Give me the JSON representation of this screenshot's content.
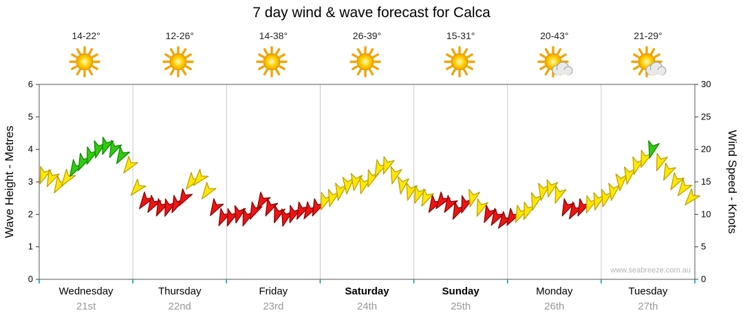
{
  "title": "7 day wind & wave forecast for Calca",
  "watermark": "www.seabreeze.com.au",
  "axes": {
    "left_label": "Wave Height - Metres",
    "right_label": "Wind Speed - Knots"
  },
  "days": [
    {
      "name": "Wednesday",
      "date": "21st",
      "temp": "14-22°",
      "icon": "sunny",
      "bold": false
    },
    {
      "name": "Thursday",
      "date": "22nd",
      "temp": "12-26°",
      "icon": "sunny",
      "bold": false
    },
    {
      "name": "Friday",
      "date": "23rd",
      "temp": "14-38°",
      "icon": "sunny",
      "bold": false
    },
    {
      "name": "Saturday",
      "date": "24th",
      "temp": "26-39°",
      "icon": "sunny",
      "bold": true
    },
    {
      "name": "Sunday",
      "date": "25th",
      "temp": "15-31°",
      "icon": "sunny",
      "bold": true
    },
    {
      "name": "Monday",
      "date": "26th",
      "temp": "20-43°",
      "icon": "partly-cloudy",
      "bold": false
    },
    {
      "name": "Tuesday",
      "date": "27th",
      "temp": "21-29°",
      "icon": "partly-cloudy",
      "bold": false
    }
  ],
  "chart_data": {
    "type": "scatter",
    "subtype": "wind-arrows",
    "title": "7 day wind & wave forecast for Calca",
    "x_axis": {
      "categories": [
        "Wednesday 21st",
        "Thursday 22nd",
        "Friday 23rd",
        "Saturday 24th",
        "Sunday 25th",
        "Monday 26th",
        "Tuesday 27th"
      ],
      "range_days": [
        0,
        7
      ],
      "grid": "vertical-day-boundaries"
    },
    "y_left": {
      "label": "Wave Height - Metres",
      "min": 0,
      "max": 6,
      "ticks": [
        0,
        1,
        2,
        3,
        4,
        5,
        6
      ]
    },
    "y_right": {
      "label": "Wind Speed - Knots",
      "min": 0,
      "max": 30,
      "ticks": [
        0,
        5,
        10,
        15,
        20,
        25,
        30
      ]
    },
    "legend": "none",
    "colors": {
      "y": "#FFE800",
      "g": "#2FCC0F",
      "r": "#EE1414"
    },
    "stroke_colors": {
      "y": "#BBA000",
      "g": "#118800",
      "r": "#8B0000"
    },
    "point_format": [
      "t_days",
      "wind_knots",
      "color_code",
      "arrow_direction_deg"
    ],
    "points": [
      [
        0.042,
        16,
        "y",
        200
      ],
      [
        0.125,
        15.5,
        "y",
        205
      ],
      [
        0.208,
        14.5,
        "y",
        210
      ],
      [
        0.292,
        15.5,
        "y",
        215
      ],
      [
        0.375,
        17,
        "g",
        210
      ],
      [
        0.458,
        18,
        "g",
        205
      ],
      [
        0.542,
        19,
        "g",
        200
      ],
      [
        0.625,
        20,
        "g",
        195
      ],
      [
        0.708,
        20.5,
        "g",
        200
      ],
      [
        0.792,
        20,
        "g",
        205
      ],
      [
        0.875,
        19,
        "g",
        210
      ],
      [
        0.958,
        17.5,
        "y",
        215
      ],
      [
        1.042,
        14,
        "y",
        220
      ],
      [
        1.125,
        12,
        "r",
        215
      ],
      [
        1.208,
        11.5,
        "r",
        210
      ],
      [
        1.292,
        11,
        "r",
        205
      ],
      [
        1.375,
        11,
        "r",
        200
      ],
      [
        1.458,
        11.5,
        "r",
        205
      ],
      [
        1.542,
        12.5,
        "r",
        210
      ],
      [
        1.625,
        15,
        "y",
        215
      ],
      [
        1.708,
        15.5,
        "y",
        220
      ],
      [
        1.792,
        13.5,
        "y",
        215
      ],
      [
        1.875,
        11,
        "r",
        210
      ],
      [
        1.958,
        9.5,
        "r",
        205
      ],
      [
        2.042,
        9.5,
        "r",
        200
      ],
      [
        2.125,
        10,
        "r",
        195
      ],
      [
        2.208,
        9.5,
        "r",
        200
      ],
      [
        2.292,
        10.5,
        "r",
        205
      ],
      [
        2.375,
        12,
        "r",
        210
      ],
      [
        2.458,
        11,
        "r",
        205
      ],
      [
        2.542,
        10,
        "r",
        200
      ],
      [
        2.625,
        9.5,
        "r",
        195
      ],
      [
        2.708,
        10,
        "r",
        200
      ],
      [
        2.792,
        10.5,
        "r",
        205
      ],
      [
        2.875,
        10.5,
        "r",
        210
      ],
      [
        2.958,
        11,
        "r",
        205
      ],
      [
        3.042,
        12,
        "y",
        200
      ],
      [
        3.125,
        12.5,
        "y",
        195
      ],
      [
        3.208,
        13.5,
        "y",
        190
      ],
      [
        3.292,
        14.5,
        "y",
        185
      ],
      [
        3.375,
        15,
        "y",
        190
      ],
      [
        3.458,
        14.5,
        "y",
        195
      ],
      [
        3.542,
        15.5,
        "y",
        200
      ],
      [
        3.625,
        17,
        "y",
        205
      ],
      [
        3.708,
        17.5,
        "y",
        200
      ],
      [
        3.792,
        16,
        "y",
        195
      ],
      [
        3.875,
        14.5,
        "y",
        190
      ],
      [
        3.958,
        13.5,
        "y",
        195
      ],
      [
        4.042,
        13,
        "y",
        200
      ],
      [
        4.125,
        12.5,
        "y",
        205
      ],
      [
        4.208,
        11.5,
        "r",
        210
      ],
      [
        4.292,
        12,
        "r",
        215
      ],
      [
        4.375,
        11.5,
        "r",
        210
      ],
      [
        4.458,
        10.5,
        "r",
        205
      ],
      [
        4.542,
        11.5,
        "r",
        200
      ],
      [
        4.625,
        12.5,
        "y",
        195
      ],
      [
        4.708,
        11,
        "y",
        200
      ],
      [
        4.792,
        10,
        "r",
        205
      ],
      [
        4.875,
        9.5,
        "r",
        210
      ],
      [
        4.958,
        9,
        "r",
        215
      ],
      [
        5.042,
        9.5,
        "r",
        210
      ],
      [
        5.125,
        10,
        "y",
        205
      ],
      [
        5.208,
        10.5,
        "y",
        200
      ],
      [
        5.292,
        12,
        "y",
        195
      ],
      [
        5.375,
        13.5,
        "y",
        190
      ],
      [
        5.458,
        14,
        "y",
        195
      ],
      [
        5.542,
        13,
        "y",
        200
      ],
      [
        5.625,
        11,
        "r",
        205
      ],
      [
        5.708,
        10.5,
        "r",
        210
      ],
      [
        5.792,
        11,
        "r",
        205
      ],
      [
        5.875,
        11.5,
        "y",
        200
      ],
      [
        5.958,
        12,
        "y",
        195
      ],
      [
        6.042,
        12.5,
        "y",
        195
      ],
      [
        6.125,
        13.5,
        "y",
        190
      ],
      [
        6.208,
        15,
        "y",
        185
      ],
      [
        6.292,
        16,
        "y",
        190
      ],
      [
        6.375,
        17.5,
        "y",
        195
      ],
      [
        6.458,
        18.5,
        "y",
        200
      ],
      [
        6.542,
        20,
        "g",
        195
      ],
      [
        6.625,
        18,
        "y",
        200
      ],
      [
        6.708,
        16.5,
        "y",
        205
      ],
      [
        6.792,
        15,
        "y",
        210
      ],
      [
        6.875,
        14,
        "y",
        215
      ],
      [
        6.958,
        12.5,
        "y",
        220
      ]
    ]
  }
}
